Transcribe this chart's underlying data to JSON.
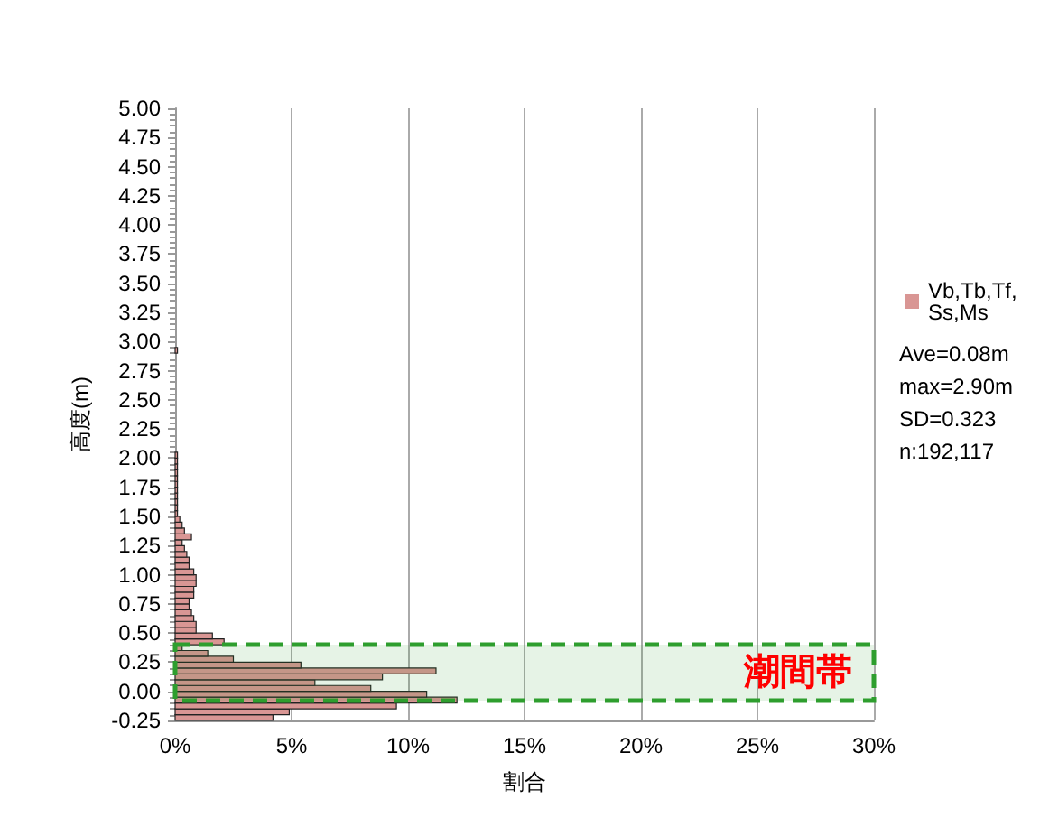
{
  "chart_data": {
    "type": "histogram",
    "orientation": "horizontal",
    "xlabel": "割合",
    "ylabel": "高度(m)",
    "bins": [
      -0.25,
      -0.2,
      -0.15,
      -0.1,
      -0.05,
      0,
      0.05,
      0.1,
      0.15,
      0.2,
      0.25,
      0.3,
      0.35,
      0.4,
      0.45,
      0.5,
      0.55,
      0.6,
      0.65,
      0.7,
      0.75,
      0.8,
      0.85,
      0.9,
      0.95,
      1,
      1.05,
      1.1,
      1.15,
      1.2,
      1.25,
      1.3,
      1.35,
      1.4,
      1.45,
      1.5,
      1.55,
      1.6,
      1.65,
      1.7,
      1.75,
      1.8,
      1.85,
      1.9,
      1.95,
      2,
      2.05,
      2.1,
      2.15,
      2.2,
      2.25,
      2.3,
      2.35,
      2.4,
      2.45,
      2.5,
      2.55,
      2.6,
      2.65,
      2.7,
      2.75,
      2.8,
      2.85,
      2.9,
      2.95
    ],
    "series": [
      {
        "name": "Vb,Tb,Tf,Ss,Ms",
        "color": "#d99694",
        "values": [
          4.2,
          4.9,
          9.5,
          12.1,
          10.8,
          8.4,
          6.0,
          8.9,
          11.2,
          5.4,
          2.5,
          1.4,
          0.3,
          2.1,
          1.6,
          0.9,
          0.9,
          0.8,
          0.7,
          0.6,
          0.6,
          0.8,
          0.8,
          0.9,
          0.9,
          0.8,
          0.6,
          0.6,
          0.5,
          0.4,
          0.3,
          0.7,
          0.4,
          0.3,
          0.2,
          0.1,
          0.1,
          0.1,
          0.1,
          0.1,
          0.1,
          0.1,
          0.1,
          0.1,
          0.1,
          0.1,
          0,
          0,
          0,
          0,
          0,
          0,
          0,
          0,
          0,
          0,
          0,
          0,
          0,
          0,
          0,
          0,
          0,
          0.1
        ]
      }
    ],
    "xlim": [
      0,
      30
    ],
    "xticks": [
      {
        "value": 0,
        "label": "0%"
      },
      {
        "value": 5,
        "label": "5%"
      },
      {
        "value": 10,
        "label": "10%"
      },
      {
        "value": 15,
        "label": "15%"
      },
      {
        "value": 20,
        "label": "20%"
      },
      {
        "value": 25,
        "label": "25%"
      },
      {
        "value": 30,
        "label": "30%"
      }
    ],
    "ylim": [
      -0.25,
      5
    ],
    "yticks": [
      {
        "value": -0.25,
        "label": "-0.25"
      },
      {
        "value": 0,
        "label": "0.00"
      },
      {
        "value": 0.25,
        "label": "0.25"
      },
      {
        "value": 0.5,
        "label": "0.50"
      },
      {
        "value": 0.75,
        "label": "0.75"
      },
      {
        "value": 1,
        "label": "1.00"
      },
      {
        "value": 1.25,
        "label": "1.25"
      },
      {
        "value": 1.5,
        "label": "1.50"
      },
      {
        "value": 1.75,
        "label": "1.75"
      },
      {
        "value": 2,
        "label": "2.00"
      },
      {
        "value": 2.25,
        "label": "2.25"
      },
      {
        "value": 2.5,
        "label": "2.50"
      },
      {
        "value": 2.75,
        "label": "2.75"
      },
      {
        "value": 3,
        "label": "3.00"
      },
      {
        "value": 3.25,
        "label": "3.25"
      },
      {
        "value": 3.5,
        "label": "3.50"
      },
      {
        "value": 3.75,
        "label": "3.75"
      },
      {
        "value": 4,
        "label": "4.00"
      },
      {
        "value": 4.25,
        "label": "4.25"
      },
      {
        "value": 4.5,
        "label": "4.50"
      },
      {
        "value": 4.75,
        "label": "4.75"
      },
      {
        "value": 5,
        "label": "5.00"
      }
    ],
    "bands": [
      {
        "axis": "y",
        "from": -0.08,
        "to": 0.4,
        "label": "潮間帯",
        "color": "#2e9e2e"
      }
    ],
    "annotations": [
      "Ave=0.08m",
      "max=2.90m",
      "SD=0.323",
      "n:192,117"
    ],
    "grid": "x",
    "legend": "right"
  }
}
